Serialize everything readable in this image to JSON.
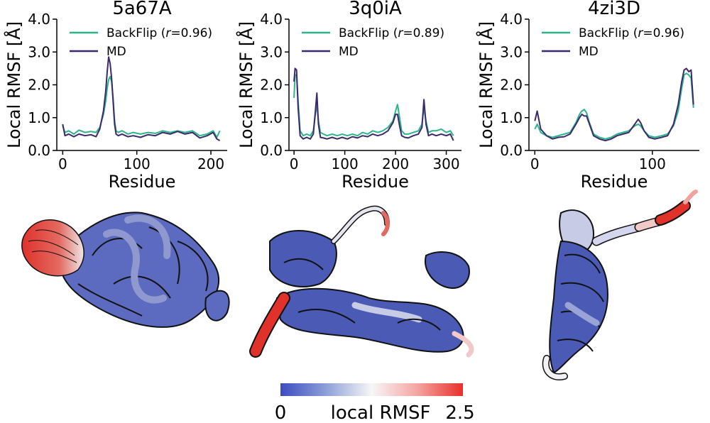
{
  "chart_data": [
    {
      "type": "line",
      "title": "5a67A",
      "xlabel": "Residue",
      "ylabel": "Local RMSF [Å]",
      "xlim": [
        -8,
        222
      ],
      "ylim": [
        0,
        4
      ],
      "x_ticks": [
        0,
        100,
        200
      ],
      "y_ticks": [
        "0.0",
        "1.0",
        "2.0",
        "3.0",
        "4.0"
      ],
      "legend_position": "top-right",
      "series": [
        {
          "name": "BackFlip",
          "legend_prefix": "BackFlip (",
          "legend_r": "r",
          "legend_suffix": "=0.96)",
          "color": "#2bb589",
          "x": [
            0,
            3,
            8,
            15,
            22,
            30,
            38,
            45,
            50,
            55,
            58,
            60,
            62,
            64,
            66,
            68,
            70,
            72,
            75,
            80,
            88,
            95,
            105,
            115,
            125,
            135,
            145,
            155,
            165,
            175,
            185,
            195,
            203,
            208,
            212
          ],
          "y": [
            0.75,
            0.55,
            0.6,
            0.5,
            0.62,
            0.55,
            0.58,
            0.55,
            0.7,
            1.1,
            1.5,
            1.9,
            2.15,
            2.25,
            2.1,
            1.6,
            0.9,
            0.6,
            0.55,
            0.6,
            0.5,
            0.55,
            0.5,
            0.55,
            0.52,
            0.6,
            0.55,
            0.6,
            0.55,
            0.6,
            0.45,
            0.5,
            0.6,
            0.4,
            0.6
          ]
        },
        {
          "name": "MD",
          "color": "#3b2a6e",
          "x": [
            0,
            3,
            8,
            15,
            22,
            30,
            38,
            45,
            50,
            55,
            58,
            60,
            62,
            64,
            66,
            68,
            70,
            72,
            75,
            80,
            88,
            95,
            105,
            115,
            125,
            135,
            145,
            155,
            165,
            175,
            185,
            195,
            203,
            208,
            212
          ],
          "y": [
            0.8,
            0.45,
            0.5,
            0.42,
            0.5,
            0.45,
            0.48,
            0.42,
            0.65,
            1.2,
            1.8,
            2.4,
            2.85,
            2.65,
            2.2,
            1.5,
            0.8,
            0.5,
            0.45,
            0.5,
            0.42,
            0.45,
            0.4,
            0.48,
            0.45,
            0.55,
            0.5,
            0.58,
            0.5,
            0.55,
            0.38,
            0.45,
            0.55,
            0.35,
            0.3
          ]
        }
      ]
    },
    {
      "type": "line",
      "title": "3q0iA",
      "xlabel": "Residue",
      "ylabel": "Local RMSF [Å]",
      "xlim": [
        -10,
        330
      ],
      "ylim": [
        0,
        4
      ],
      "x_ticks": [
        0,
        100,
        200,
        300
      ],
      "y_ticks": [
        "0.0",
        "1.0",
        "2.0",
        "3.0",
        "4.0"
      ],
      "legend_position": "top-right",
      "series": [
        {
          "name": "BackFlip",
          "legend_prefix": "BackFlip (",
          "legend_r": "r",
          "legend_suffix": "=0.89)",
          "color": "#2bb589",
          "x": [
            0,
            2,
            5,
            8,
            12,
            18,
            25,
            32,
            38,
            42,
            45,
            48,
            52,
            58,
            65,
            75,
            85,
            95,
            105,
            115,
            125,
            135,
            145,
            155,
            165,
            175,
            185,
            195,
            200,
            204,
            208,
            212,
            218,
            225,
            235,
            245,
            252,
            256,
            260,
            265,
            272,
            280,
            290,
            300,
            308,
            314
          ],
          "y": [
            1.6,
            2.3,
            2.3,
            1.5,
            0.6,
            0.45,
            0.5,
            0.45,
            0.6,
            1.1,
            1.4,
            0.9,
            0.55,
            0.5,
            0.45,
            0.5,
            0.45,
            0.5,
            0.45,
            0.5,
            0.45,
            0.55,
            0.5,
            0.6,
            0.55,
            0.6,
            0.7,
            0.9,
            1.2,
            1.4,
            1.0,
            0.6,
            0.5,
            0.5,
            0.55,
            0.6,
            0.8,
            1.3,
            0.9,
            0.55,
            0.6,
            0.6,
            0.65,
            0.55,
            0.6,
            0.45
          ]
        },
        {
          "name": "MD",
          "color": "#3b2a6e",
          "x": [
            0,
            2,
            5,
            8,
            12,
            18,
            25,
            32,
            38,
            42,
            45,
            48,
            52,
            58,
            65,
            75,
            85,
            95,
            105,
            115,
            125,
            135,
            145,
            155,
            165,
            175,
            185,
            195,
            200,
            204,
            208,
            212,
            218,
            225,
            235,
            245,
            252,
            256,
            260,
            265,
            272,
            280,
            290,
            300,
            308,
            314
          ],
          "y": [
            2.1,
            2.5,
            2.45,
            1.3,
            0.45,
            0.35,
            0.4,
            0.35,
            0.5,
            1.2,
            1.75,
            0.8,
            0.4,
            0.38,
            0.35,
            0.4,
            0.35,
            0.4,
            0.35,
            0.42,
            0.38,
            0.45,
            0.42,
            0.5,
            0.45,
            0.5,
            0.6,
            0.85,
            1.1,
            1.1,
            0.75,
            0.45,
            0.4,
            0.38,
            0.45,
            0.5,
            0.7,
            1.55,
            0.8,
            0.45,
            0.5,
            0.45,
            0.5,
            0.45,
            0.5,
            0.3
          ]
        }
      ]
    },
    {
      "type": "line",
      "title": "4zi3D",
      "xlabel": "Residue",
      "ylabel": "Local RMSF [Å]",
      "xlim": [
        -5,
        140
      ],
      "ylim": [
        0,
        4
      ],
      "x_ticks": [
        0,
        100
      ],
      "y_ticks": [
        "0.0",
        "1.0",
        "2.0",
        "3.0",
        "4.0"
      ],
      "legend_position": "top-right",
      "series": [
        {
          "name": "BackFlip",
          "legend_prefix": "BackFlip (",
          "legend_r": "r",
          "legend_suffix": "=0.96)",
          "color": "#2bb589",
          "x": [
            0,
            2,
            5,
            10,
            15,
            20,
            25,
            30,
            35,
            38,
            40,
            42,
            44,
            46,
            50,
            55,
            60,
            65,
            70,
            75,
            80,
            85,
            88,
            90,
            93,
            97,
            102,
            108,
            113,
            118,
            122,
            125,
            127,
            129,
            131,
            133,
            135
          ],
          "y": [
            0.65,
            0.8,
            0.55,
            0.45,
            0.4,
            0.45,
            0.5,
            0.55,
            0.85,
            1.1,
            1.2,
            1.25,
            1.15,
            0.9,
            0.5,
            0.4,
            0.35,
            0.4,
            0.5,
            0.55,
            0.6,
            0.75,
            0.8,
            0.75,
            0.6,
            0.45,
            0.4,
            0.45,
            0.5,
            0.75,
            1.2,
            1.9,
            2.3,
            2.35,
            2.3,
            2.2,
            1.3
          ]
        },
        {
          "name": "MD",
          "color": "#3b2a6e",
          "x": [
            0,
            2,
            5,
            10,
            15,
            20,
            25,
            30,
            35,
            38,
            40,
            42,
            44,
            46,
            50,
            55,
            60,
            65,
            70,
            75,
            80,
            85,
            88,
            90,
            93,
            97,
            102,
            108,
            113,
            118,
            122,
            125,
            127,
            129,
            131,
            133,
            135
          ],
          "y": [
            0.9,
            1.2,
            0.65,
            0.45,
            0.35,
            0.4,
            0.42,
            0.5,
            0.8,
            1.0,
            1.1,
            1.05,
            1.05,
            0.85,
            0.45,
            0.35,
            0.3,
            0.35,
            0.45,
            0.5,
            0.55,
            0.8,
            0.95,
            0.85,
            0.6,
            0.4,
            0.35,
            0.4,
            0.45,
            0.8,
            1.4,
            2.1,
            2.45,
            2.5,
            2.4,
            2.45,
            1.4
          ]
        }
      ]
    }
  ],
  "colorbar": {
    "min_label": "0",
    "max_label": "2.5",
    "label": "local RMSF",
    "colors": [
      "#3b4cc0",
      "#8d9fd8",
      "#f7f7f7",
      "#f4a5a1",
      "#e8302a"
    ]
  },
  "structure_colors": {
    "low": "#5c6bbf",
    "mid": "#e6e6f0",
    "high": "#e0312b"
  }
}
